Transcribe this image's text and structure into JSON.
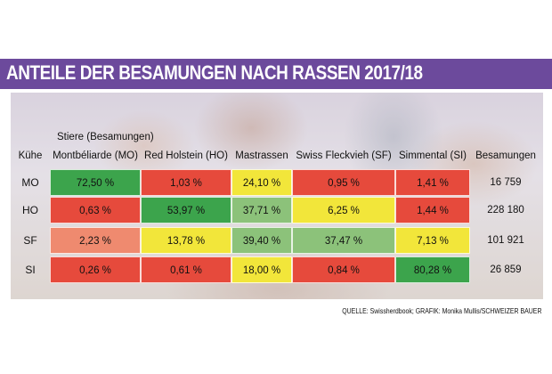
{
  "title": "ANTEILE DER BESAMUNGEN NACH RASSEN 2017/18",
  "source": "QUELLE: Swissherdbook; GRAFIK: Monika Mullis/SCHWEIZER BAUER",
  "colors": {
    "red": "#e64a3c",
    "green": "#3ca44c",
    "yellow": "#f2e63a",
    "light_red": "#ef8a6f",
    "light_green": "#8cc27a",
    "title_bg": "#6c4a9c"
  },
  "chart_data": {
    "type": "table",
    "group_label": "Stiere (Besamungen)",
    "row_header": "Kühe",
    "columns": [
      "Montbéliarde (MO)",
      "Red Holstein (HO)",
      "Mastrassen",
      "Swiss Fleckvieh (SF)",
      "Simmental (SI)"
    ],
    "total_header": "Besamungen",
    "rows": [
      {
        "label": "MO",
        "cells": [
          "72,50 %",
          "1,03 %",
          "24,10 %",
          "0,95 %",
          "1,41 %"
        ],
        "colors": [
          "green",
          "red",
          "yellow",
          "red",
          "red"
        ],
        "total": "16 759"
      },
      {
        "label": "HO",
        "cells": [
          "0,63 %",
          "53,97 %",
          "37,71 %",
          "6,25 %",
          "1,44 %"
        ],
        "colors": [
          "red",
          "green",
          "light_green",
          "yellow",
          "red"
        ],
        "total": "228 180"
      },
      {
        "label": "SF",
        "cells": [
          "2,23 %",
          "13,78 %",
          "39,40 %",
          "37,47 %",
          "7,13 %"
        ],
        "colors": [
          "light_red",
          "yellow",
          "light_green",
          "light_green",
          "yellow"
        ],
        "total": "101 921"
      },
      {
        "label": "SI",
        "cells": [
          "0,26 %",
          "0,61 %",
          "18,00 %",
          "0,84 %",
          "80,28 %"
        ],
        "colors": [
          "red",
          "red",
          "yellow",
          "red",
          "green"
        ],
        "total": "26 859"
      }
    ]
  }
}
